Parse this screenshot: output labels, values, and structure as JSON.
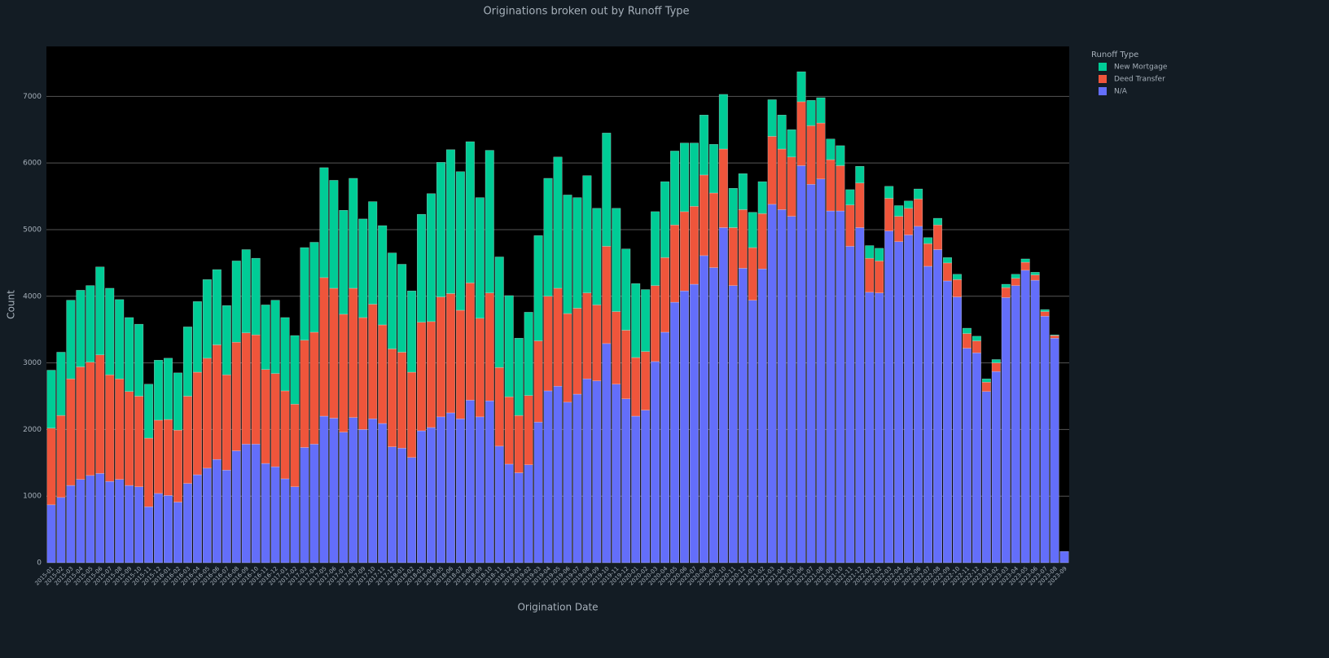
{
  "chart_data": {
    "type": "stacked-bar",
    "title": "Originations broken out by Runoff Type",
    "x_label": "Origination Date",
    "y_label": "Count",
    "legend_title": "Runoff Type",
    "legend_position": "right",
    "categories": [
      "2015-01",
      "2015-02",
      "2015-03",
      "2015-04",
      "2015-05",
      "2015-06",
      "2015-07",
      "2015-08",
      "2015-09",
      "2015-10",
      "2015-11",
      "2015-12",
      "2016-01",
      "2016-02",
      "2016-03",
      "2016-04",
      "2016-05",
      "2016-06",
      "2016-07",
      "2016-08",
      "2016-09",
      "2016-10",
      "2016-11",
      "2016-12",
      "2017-01",
      "2017-02",
      "2017-03",
      "2017-04",
      "2017-05",
      "2017-06",
      "2017-07",
      "2017-08",
      "2017-09",
      "2017-10",
      "2017-11",
      "2017-12",
      "2018-01",
      "2018-02",
      "2018-03",
      "2018-04",
      "2018-05",
      "2018-06",
      "2018-07",
      "2018-08",
      "2018-09",
      "2018-10",
      "2018-11",
      "2018-12",
      "2019-01",
      "2019-02",
      "2019-03",
      "2019-04",
      "2019-05",
      "2019-06",
      "2019-07",
      "2019-08",
      "2019-09",
      "2019-10",
      "2019-11",
      "2019-12",
      "2020-01",
      "2020-02",
      "2020-03",
      "2020-04",
      "2020-05",
      "2020-06",
      "2020-07",
      "2020-08",
      "2020-09",
      "2020-10",
      "2020-11",
      "2020-12",
      "2021-01",
      "2021-02",
      "2021-03",
      "2021-04",
      "2021-05",
      "2021-06",
      "2021-07",
      "2021-08",
      "2021-09",
      "2021-10",
      "2021-11",
      "2021-12",
      "2022-01",
      "2022-02",
      "2022-03",
      "2022-04",
      "2022-05",
      "2022-06",
      "2022-07",
      "2022-08",
      "2022-09",
      "2022-10",
      "2022-11",
      "2022-12",
      "2023-01",
      "2023-02",
      "2023-03",
      "2023-04",
      "2023-05",
      "2023-06",
      "2023-07",
      "2023-08",
      "2023-09"
    ],
    "series": [
      {
        "name": "New Mortgage",
        "color": "#00cc96",
        "values": [
          870,
          950,
          1180,
          1150,
          1150,
          1320,
          1300,
          1190,
          1110,
          1080,
          810,
          900,
          920,
          860,
          1040,
          1060,
          1180,
          1130,
          1040,
          1220,
          1250,
          1150,
          970,
          1100,
          1100,
          1030,
          1390,
          1350,
          1650,
          1620,
          1560,
          1650,
          1480,
          1540,
          1490,
          1440,
          1320,
          1220,
          1620,
          1920,
          2020,
          2160,
          2080,
          2120,
          1810,
          2140,
          1660,
          1520,
          1160,
          1250,
          1580,
          1770,
          1970,
          1780,
          1660,
          1760,
          1450,
          1700,
          1550,
          1220,
          1110,
          930,
          1110,
          1140,
          1110,
          1030,
          950,
          900,
          730,
          820,
          590,
          540,
          530,
          480,
          550,
          510,
          410,
          450,
          380,
          380,
          310,
          300,
          230,
          250,
          190,
          190,
          180,
          160,
          110,
          150,
          90,
          100,
          80,
          80,
          80,
          70,
          50,
          50,
          50,
          60,
          50,
          40,
          30,
          10,
          0
        ]
      },
      {
        "name": "Deed Transfer",
        "color": "#ef553b",
        "values": [
          1150,
          1230,
          1600,
          1690,
          1700,
          1780,
          1600,
          1510,
          1410,
          1360,
          1030,
          1100,
          1140,
          1080,
          1310,
          1540,
          1650,
          1720,
          1430,
          1630,
          1670,
          1640,
          1410,
          1400,
          1320,
          1240,
          1610,
          1680,
          2080,
          1950,
          1770,
          1940,
          1680,
          1720,
          1480,
          1470,
          1440,
          1280,
          1630,
          1590,
          1800,
          1790,
          1630,
          1760,
          1480,
          1620,
          1180,
          1010,
          860,
          1040,
          1220,
          1420,
          1470,
          1330,
          1290,
          1290,
          1140,
          1460,
          1090,
          1030,
          880,
          880,
          1140,
          1120,
          1160,
          1190,
          1170,
          1210,
          1120,
          1180,
          870,
          880,
          790,
          830,
          1020,
          910,
          890,
          960,
          880,
          840,
          770,
          680,
          620,
          670,
          510,
          480,
          490,
          380,
          400,
          410,
          340,
          370,
          270,
          260,
          220,
          180,
          140,
          130,
          150,
          110,
          120,
          80,
          70,
          40,
          0
        ]
      },
      {
        "name": "N/A",
        "color": "#636efa",
        "values": [
          870,
          980,
          1160,
          1250,
          1310,
          1340,
          1220,
          1250,
          1160,
          1140,
          840,
          1040,
          1010,
          910,
          1190,
          1320,
          1420,
          1550,
          1390,
          1680,
          1780,
          1780,
          1490,
          1440,
          1260,
          1140,
          1730,
          1780,
          2200,
          2170,
          1960,
          2180,
          2000,
          2160,
          2090,
          1740,
          1720,
          1580,
          1980,
          2030,
          2190,
          2250,
          2160,
          2440,
          2190,
          2430,
          1750,
          1480,
          1350,
          1470,
          2110,
          2580,
          2650,
          2410,
          2530,
          2760,
          2730,
          3290,
          2680,
          2460,
          2200,
          2290,
          3020,
          3460,
          3910,
          4080,
          4180,
          4610,
          4430,
          5030,
          4160,
          4420,
          3940,
          4410,
          5380,
          5300,
          5200,
          5960,
          5680,
          5760,
          5280,
          5280,
          4750,
          5030,
          4060,
          4050,
          4980,
          4820,
          4920,
          5050,
          4450,
          4700,
          4230,
          3990,
          3220,
          3150,
          2570,
          2870,
          3980,
          4160,
          4390,
          4240,
          3700,
          3370,
          170
        ]
      }
    ],
    "ylim": [
      0,
      7750
    ],
    "yticks": [
      0,
      1000,
      2000,
      3000,
      4000,
      5000,
      6000,
      7000
    ],
    "grid": true
  }
}
